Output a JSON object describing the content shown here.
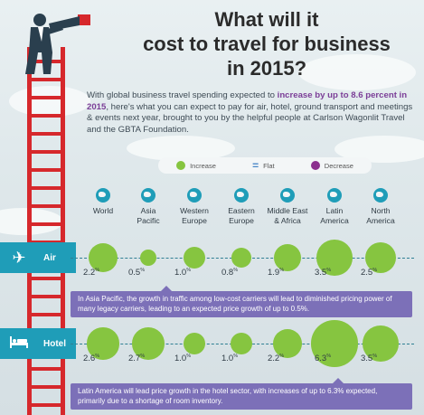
{
  "title_lines": [
    "What will it",
    "cost to travel for business",
    "in 2015?"
  ],
  "intro": {
    "before": "With global business travel spending expected to ",
    "highlight": "increase by up to 8.6 percent in 2015",
    "after": ", here's what you can expect to pay for air, hotel, ground transport and meetings & events next year, brought to you by the helpful people at Carlson Wagonlit Travel and the GBTA Foundation."
  },
  "legend": {
    "increase": "Increase",
    "flat_symbol": "=",
    "flat": "Flat",
    "decrease": "Decrease"
  },
  "colors": {
    "increase": "#86c540",
    "flat": "#4a88c8",
    "decrease": "#8b2f8e",
    "band": "#1f9db8",
    "note": "#7c70b8",
    "ladder": "#d6282c"
  },
  "regions": [
    {
      "name_lines": [
        "World"
      ],
      "icon": "globe-icon"
    },
    {
      "name_lines": [
        "Asia",
        "Pacific"
      ],
      "icon": "globe-icon"
    },
    {
      "name_lines": [
        "Western",
        "Europe"
      ],
      "icon": "globe-icon"
    },
    {
      "name_lines": [
        "Eastern",
        "Europe"
      ],
      "icon": "globe-icon"
    },
    {
      "name_lines": [
        "Middle East",
        "& Africa"
      ],
      "icon": "globe-icon"
    },
    {
      "name_lines": [
        "Latin",
        "America"
      ],
      "icon": "globe-icon"
    },
    {
      "name_lines": [
        "North",
        "America"
      ],
      "icon": "globe-icon"
    }
  ],
  "categories": [
    {
      "label": "Air",
      "icon": "airplane-icon",
      "values": [
        2.2,
        0.5,
        1.0,
        0.8,
        1.9,
        3.5,
        2.5
      ],
      "labels": [
        "2.2",
        "0.5",
        "1.0",
        "0.8",
        "1.9",
        "3.5",
        "2.5"
      ],
      "unit": "%",
      "note": "In Asia Pacific, the growth in traffic among low-cost carriers will lead to diminished pricing power of many legacy carriers, leading to an expected price growth of up to 0.5%."
    },
    {
      "label": "Hotel",
      "icon": "bed-icon",
      "values": [
        2.6,
        2.7,
        1.0,
        1.0,
        2.2,
        6.3,
        3.5
      ],
      "labels": [
        "2.6",
        "2.7",
        "1.0",
        "1.0",
        "2.2",
        "6.3",
        "3.5"
      ],
      "unit": "%",
      "note": "Latin America will lead price growth in the hotel sector, with increases of up to 6.3% expected, primarily due to a shortage of room inventory."
    }
  ]
}
